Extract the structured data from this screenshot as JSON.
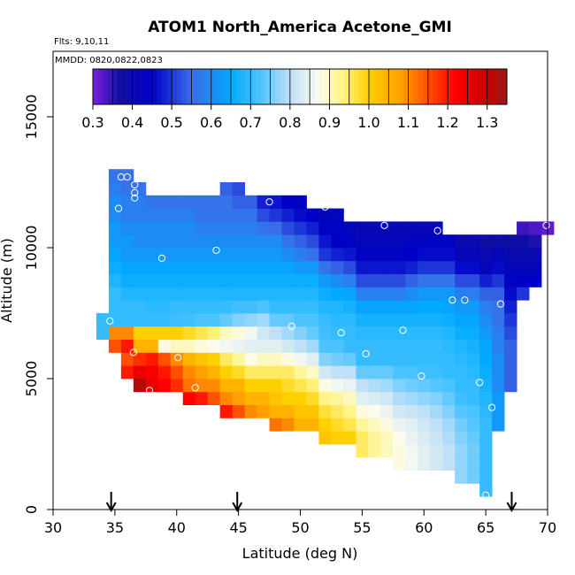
{
  "chart_data": {
    "type": "heatmap",
    "title": "ATOM1 North_America Acetone_GMI",
    "annotations": {
      "flights": "Flts: 9,10,11",
      "dates": "MMDD: 0820,0822,0823"
    },
    "xlabel": "Latitude (deg N)",
    "ylabel": "Altitude (m)",
    "xlim": [
      30,
      70
    ],
    "ylim": [
      0,
      17500
    ],
    "x_ticks": [
      30,
      35,
      40,
      45,
      50,
      55,
      60,
      65,
      70
    ],
    "y_ticks": [
      0,
      5000,
      10000,
      15000
    ],
    "cell_width_deg": 1,
    "cell_height_m": 500,
    "grid": false,
    "colorbar": {
      "position": "top",
      "vmin": 0.3,
      "vmax": 1.35,
      "ticks": [
        0.3,
        0.4,
        0.5,
        0.6,
        0.7,
        0.8,
        0.9,
        1.0,
        1.1,
        1.2,
        1.3
      ],
      "tick_labels": [
        "0.3",
        "0.4",
        "0.5",
        "0.6",
        "0.7",
        "0.8",
        "0.9",
        "1.0",
        "1.1",
        "1.2",
        "1.3"
      ],
      "stops": [
        {
          "v": 0.3,
          "color": "#7b1fe0"
        },
        {
          "v": 0.37,
          "color": "#1010a0"
        },
        {
          "v": 0.45,
          "color": "#0000c8"
        },
        {
          "v": 0.55,
          "color": "#3a6de8"
        },
        {
          "v": 0.65,
          "color": "#00aaff"
        },
        {
          "v": 0.73,
          "color": "#55c6ff"
        },
        {
          "v": 0.8,
          "color": "#bfe0f6"
        },
        {
          "v": 0.87,
          "color": "#fbfbf0"
        },
        {
          "v": 0.93,
          "color": "#fff58a"
        },
        {
          "v": 1.0,
          "color": "#ffd000"
        },
        {
          "v": 1.08,
          "color": "#ffa000"
        },
        {
          "v": 1.15,
          "color": "#ff5000"
        },
        {
          "v": 1.22,
          "color": "#ff0000"
        },
        {
          "v": 1.3,
          "color": "#c80000"
        },
        {
          "v": 1.35,
          "color": "#9a1a1a"
        }
      ]
    },
    "columns": [
      {
        "lat": 34,
        "alt_min": 6500,
        "alt_max": 7500,
        "values": [
          0.7,
          0.7
        ]
      },
      {
        "lat": 35,
        "alt_min": 6000,
        "alt_max": 13000,
        "values": [
          1.15,
          1.1,
          0.7,
          0.7,
          0.7,
          0.68,
          0.66,
          0.64,
          0.62,
          0.62,
          0.6,
          0.6,
          0.58,
          0.56
        ]
      },
      {
        "lat": 36,
        "alt_min": 5000,
        "alt_max": 13000,
        "values": [
          1.2,
          1.15,
          1.2,
          1.1,
          0.7,
          0.7,
          0.68,
          0.66,
          0.64,
          0.62,
          0.62,
          0.6,
          0.58,
          0.58,
          0.56,
          0.56
        ]
      },
      {
        "lat": 37,
        "alt_min": 4500,
        "alt_max": 12500,
        "values": [
          1.32,
          1.25,
          1.18,
          1.05,
          1.0,
          0.7,
          0.7,
          0.68,
          0.66,
          0.64,
          0.62,
          0.6,
          0.6,
          0.58,
          0.58,
          0.56
        ]
      },
      {
        "lat": 38,
        "alt_min": 4500,
        "alt_max": 12000,
        "values": [
          1.25,
          1.23,
          1.2,
          1.05,
          1.0,
          0.7,
          0.69,
          0.68,
          0.66,
          0.64,
          0.62,
          0.6,
          0.6,
          0.58,
          0.56
        ]
      },
      {
        "lat": 39,
        "alt_min": 4500,
        "alt_max": 12000,
        "values": [
          1.22,
          1.2,
          1.15,
          0.88,
          1.0,
          0.7,
          0.69,
          0.68,
          0.66,
          0.64,
          0.62,
          0.6,
          0.6,
          0.58,
          0.56
        ]
      },
      {
        "lat": 40,
        "alt_min": 4500,
        "alt_max": 12000,
        "values": [
          1.18,
          1.15,
          1.1,
          0.9,
          1.0,
          0.71,
          0.7,
          0.68,
          0.66,
          0.64,
          0.62,
          0.6,
          0.6,
          0.58,
          0.56
        ]
      },
      {
        "lat": 41,
        "alt_min": 4000,
        "alt_max": 12000,
        "values": [
          1.22,
          1.12,
          1.1,
          1.05,
          0.9,
          0.98,
          0.71,
          0.7,
          0.68,
          0.66,
          0.64,
          0.62,
          0.6,
          0.6,
          0.58,
          0.56
        ]
      },
      {
        "lat": 42,
        "alt_min": 4000,
        "alt_max": 12000,
        "values": [
          1.2,
          1.1,
          1.08,
          1.02,
          0.88,
          0.96,
          0.72,
          0.7,
          0.68,
          0.66,
          0.64,
          0.62,
          0.6,
          0.58,
          0.56,
          0.56
        ]
      },
      {
        "lat": 43,
        "alt_min": 4000,
        "alt_max": 12000,
        "values": [
          1.15,
          1.1,
          1.05,
          1.0,
          0.87,
          0.94,
          0.72,
          0.7,
          0.68,
          0.66,
          0.64,
          0.62,
          0.6,
          0.58,
          0.56,
          0.56
        ]
      },
      {
        "lat": 44,
        "alt_min": 3500,
        "alt_max": 12500,
        "values": [
          1.2,
          1.1,
          1.05,
          1.0,
          0.95,
          0.86,
          0.9,
          0.74,
          0.7,
          0.68,
          0.66,
          0.64,
          0.62,
          0.6,
          0.58,
          0.56,
          0.56,
          0.54
        ]
      },
      {
        "lat": 45,
        "alt_min": 3500,
        "alt_max": 12500,
        "values": [
          1.15,
          1.08,
          1.05,
          0.98,
          0.92,
          0.85,
          0.88,
          0.76,
          0.71,
          0.68,
          0.66,
          0.64,
          0.62,
          0.6,
          0.58,
          0.56,
          0.54,
          0.52
        ]
      },
      {
        "lat": 46,
        "alt_min": 3500,
        "alt_max": 12000,
        "values": [
          1.1,
          1.05,
          1.0,
          0.95,
          0.88,
          0.84,
          0.86,
          0.77,
          0.71,
          0.68,
          0.66,
          0.64,
          0.62,
          0.6,
          0.58,
          0.56,
          0.54
        ]
      },
      {
        "lat": 47,
        "alt_min": 3500,
        "alt_max": 12000,
        "values": [
          1.08,
          1.05,
          1.0,
          0.95,
          0.9,
          0.84,
          0.82,
          0.78,
          0.72,
          0.68,
          0.66,
          0.64,
          0.62,
          0.6,
          0.56,
          0.52,
          0.48
        ]
      },
      {
        "lat": 48,
        "alt_min": 3000,
        "alt_max": 12000,
        "values": [
          1.12,
          1.05,
          1.02,
          1.0,
          0.95,
          0.9,
          0.84,
          0.8,
          0.74,
          0.7,
          0.68,
          0.66,
          0.64,
          0.62,
          0.6,
          0.55,
          0.5,
          0.47
        ]
      },
      {
        "lat": 49,
        "alt_min": 3000,
        "alt_max": 12000,
        "values": [
          1.1,
          1.05,
          1.0,
          0.98,
          0.95,
          0.88,
          0.82,
          0.78,
          0.74,
          0.7,
          0.68,
          0.66,
          0.64,
          0.6,
          0.56,
          0.52,
          0.48,
          0.45
        ]
      },
      {
        "lat": 50,
        "alt_min": 3000,
        "alt_max": 12000,
        "values": [
          1.05,
          1.02,
          1.0,
          0.96,
          0.92,
          0.86,
          0.8,
          0.76,
          0.72,
          0.7,
          0.68,
          0.66,
          0.62,
          0.58,
          0.54,
          0.5,
          0.46,
          0.44
        ]
      },
      {
        "lat": 51,
        "alt_min": 3000,
        "alt_max": 11500,
        "values": [
          1.05,
          1.02,
          0.98,
          0.94,
          0.9,
          0.84,
          0.78,
          0.74,
          0.72,
          0.7,
          0.68,
          0.66,
          0.62,
          0.56,
          0.52,
          0.48,
          0.45
        ]
      },
      {
        "lat": 52,
        "alt_min": 2500,
        "alt_max": 11500,
        "values": [
          1.02,
          1.0,
          0.97,
          0.93,
          0.88,
          0.82,
          0.76,
          0.72,
          0.71,
          0.7,
          0.68,
          0.66,
          0.62,
          0.56,
          0.5,
          0.47,
          0.44,
          0.43
        ]
      },
      {
        "lat": 53,
        "alt_min": 2500,
        "alt_max": 11500,
        "values": [
          1.0,
          0.98,
          0.95,
          0.92,
          0.86,
          0.8,
          0.75,
          0.72,
          0.7,
          0.69,
          0.68,
          0.65,
          0.6,
          0.54,
          0.48,
          0.45,
          0.44,
          0.42
        ]
      },
      {
        "lat": 54,
        "alt_min": 2500,
        "alt_max": 11000,
        "values": [
          1.0,
          0.96,
          0.93,
          0.9,
          0.85,
          0.8,
          0.74,
          0.7,
          0.7,
          0.69,
          0.67,
          0.64,
          0.58,
          0.52,
          0.47,
          0.44,
          0.42
        ]
      },
      {
        "lat": 55,
        "alt_min": 2000,
        "alt_max": 11000,
        "values": [
          0.95,
          0.95,
          0.92,
          0.88,
          0.84,
          0.8,
          0.74,
          0.7,
          0.7,
          0.69,
          0.67,
          0.64,
          0.58,
          0.52,
          0.47,
          0.44,
          0.42,
          0.41
        ]
      },
      {
        "lat": 56,
        "alt_min": 2000,
        "alt_max": 11000,
        "values": [
          0.92,
          0.92,
          0.9,
          0.87,
          0.83,
          0.79,
          0.74,
          0.7,
          0.7,
          0.69,
          0.67,
          0.64,
          0.58,
          0.52,
          0.47,
          0.44,
          0.42,
          0.41
        ]
      },
      {
        "lat": 57,
        "alt_min": 2000,
        "alt_max": 11000,
        "values": [
          0.9,
          0.9,
          0.88,
          0.85,
          0.82,
          0.78,
          0.74,
          0.7,
          0.7,
          0.69,
          0.67,
          0.64,
          0.58,
          0.52,
          0.47,
          0.44,
          0.42,
          0.41
        ]
      },
      {
        "lat": 58,
        "alt_min": 1500,
        "alt_max": 11000,
        "values": [
          0.88,
          0.88,
          0.87,
          0.85,
          0.82,
          0.79,
          0.76,
          0.72,
          0.7,
          0.7,
          0.69,
          0.67,
          0.64,
          0.58,
          0.52,
          0.47,
          0.44,
          0.42,
          0.41
        ]
      },
      {
        "lat": 59,
        "alt_min": 1500,
        "alt_max": 11000,
        "values": [
          0.86,
          0.86,
          0.85,
          0.84,
          0.81,
          0.78,
          0.75,
          0.72,
          0.7,
          0.7,
          0.69,
          0.67,
          0.64,
          0.6,
          0.54,
          0.48,
          0.45,
          0.43,
          0.41
        ]
      },
      {
        "lat": 60,
        "alt_min": 1500,
        "alt_max": 11000,
        "values": [
          0.84,
          0.84,
          0.83,
          0.82,
          0.8,
          0.77,
          0.74,
          0.71,
          0.7,
          0.7,
          0.69,
          0.67,
          0.65,
          0.62,
          0.56,
          0.5,
          0.46,
          0.44,
          0.41
        ]
      },
      {
        "lat": 61,
        "alt_min": 1500,
        "alt_max": 11000,
        "values": [
          0.82,
          0.82,
          0.81,
          0.8,
          0.78,
          0.76,
          0.73,
          0.71,
          0.7,
          0.7,
          0.69,
          0.67,
          0.65,
          0.62,
          0.56,
          0.5,
          0.46,
          0.44,
          0.41
        ]
      },
      {
        "lat": 62,
        "alt_min": 1500,
        "alt_max": 10500,
        "values": [
          0.8,
          0.8,
          0.79,
          0.78,
          0.76,
          0.74,
          0.72,
          0.7,
          0.7,
          0.69,
          0.68,
          0.66,
          0.64,
          0.62,
          0.56,
          0.5,
          0.46,
          0.44
        ]
      },
      {
        "lat": 63,
        "alt_min": 1000,
        "alt_max": 10500,
        "values": [
          0.77,
          0.77,
          0.77,
          0.76,
          0.75,
          0.73,
          0.71,
          0.7,
          0.7,
          0.69,
          0.68,
          0.66,
          0.64,
          0.62,
          0.58,
          0.52,
          0.46,
          0.42,
          0.4
        ]
      },
      {
        "lat": 64,
        "alt_min": 1000,
        "alt_max": 10500,
        "values": [
          0.75,
          0.75,
          0.75,
          0.74,
          0.73,
          0.72,
          0.7,
          0.7,
          0.69,
          0.68,
          0.67,
          0.66,
          0.64,
          0.62,
          0.58,
          0.52,
          0.46,
          0.42,
          0.4
        ]
      },
      {
        "lat": 65,
        "alt_min": 500,
        "alt_max": 10500,
        "values": [
          0.7,
          0.7,
          0.7,
          0.7,
          0.7,
          0.7,
          0.69,
          0.68,
          0.67,
          0.66,
          0.65,
          0.64,
          0.62,
          0.6,
          0.58,
          0.54,
          0.48,
          0.42,
          0.4,
          0.38
        ]
      },
      {
        "lat": 66,
        "alt_min": 3000,
        "alt_max": 10500,
        "values": [
          0.62,
          0.62,
          0.62,
          0.6,
          0.6,
          0.6,
          0.58,
          0.58,
          0.56,
          0.56,
          0.54,
          0.5,
          0.46,
          0.42,
          0.38
        ]
      },
      {
        "lat": 67,
        "alt_min": 4500,
        "alt_max": 10500,
        "values": [
          0.54,
          0.54,
          0.54,
          0.54,
          0.52,
          0.5,
          0.48,
          0.46,
          0.44,
          0.42,
          0.4,
          0.38
        ]
      },
      {
        "lat": 68,
        "alt_min": 8000,
        "alt_max": 11000,
        "values": [
          0.5,
          0.45,
          0.42,
          0.4,
          0.38,
          0.34
        ]
      },
      {
        "lat": 69,
        "alt_min": 8500,
        "alt_max": 11000,
        "values": [
          0.45,
          0.42,
          0.4,
          0.36,
          0.33
        ]
      },
      {
        "lat": 70,
        "alt_min": 10500,
        "alt_max": 11000,
        "values": [
          0.32
        ]
      }
    ],
    "observations": [
      {
        "lat": 35.5,
        "alt": 12700
      },
      {
        "lat": 36.0,
        "alt": 12700
      },
      {
        "lat": 36.6,
        "alt": 12400
      },
      {
        "lat": 36.6,
        "alt": 12100
      },
      {
        "lat": 36.6,
        "alt": 11900
      },
      {
        "lat": 35.3,
        "alt": 11500
      },
      {
        "lat": 34.6,
        "alt": 7200
      },
      {
        "lat": 36.5,
        "alt": 6000
      },
      {
        "lat": 38.8,
        "alt": 9600
      },
      {
        "lat": 43.2,
        "alt": 9900
      },
      {
        "lat": 47.5,
        "alt": 11750
      },
      {
        "lat": 52.0,
        "alt": 11550
      },
      {
        "lat": 56.8,
        "alt": 10850
      },
      {
        "lat": 61.1,
        "alt": 10650
      },
      {
        "lat": 69.9,
        "alt": 10850
      },
      {
        "lat": 62.3,
        "alt": 8000
      },
      {
        "lat": 63.3,
        "alt": 8000
      },
      {
        "lat": 66.2,
        "alt": 7850
      },
      {
        "lat": 58.3,
        "alt": 6850
      },
      {
        "lat": 53.3,
        "alt": 6750
      },
      {
        "lat": 49.3,
        "alt": 7000
      },
      {
        "lat": 55.3,
        "alt": 5950
      },
      {
        "lat": 46.1,
        "alt": 5700
      },
      {
        "lat": 40.1,
        "alt": 5800
      },
      {
        "lat": 50.9,
        "alt": 5250
      },
      {
        "lat": 59.8,
        "alt": 5100
      },
      {
        "lat": 64.5,
        "alt": 4850
      },
      {
        "lat": 41.5,
        "alt": 4650
      },
      {
        "lat": 37.8,
        "alt": 4550
      },
      {
        "lat": 65.5,
        "alt": 3900
      },
      {
        "lat": 59.1,
        "alt": 1800
      },
      {
        "lat": 65.0,
        "alt": 550
      }
    ],
    "markers_lat": [
      34.7,
      44.9,
      67.1
    ]
  }
}
